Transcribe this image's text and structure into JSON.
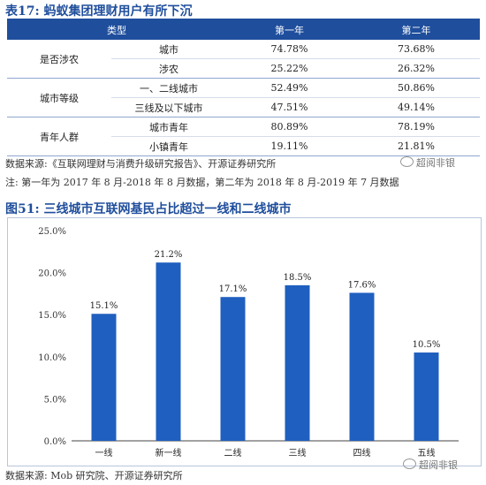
{
  "table17": {
    "title": "表17: 蚂蚁集团理财用户有所下沉",
    "headers": [
      "类型",
      "第一年",
      "第二年"
    ],
    "groups": [
      {
        "label": "是否涉农",
        "rows": [
          {
            "sub": "城市",
            "y1": "74.78%",
            "y2": "73.68%"
          },
          {
            "sub": "涉农",
            "y1": "25.22%",
            "y2": "26.32%"
          }
        ]
      },
      {
        "label": "城市等级",
        "rows": [
          {
            "sub": "一、二线城市",
            "y1": "52.49%",
            "y2": "50.86%"
          },
          {
            "sub": "三线及以下城市",
            "y1": "47.51%",
            "y2": "49.14%"
          }
        ]
      },
      {
        "label": "青年人群",
        "rows": [
          {
            "sub": "城市青年",
            "y1": "80.89%",
            "y2": "78.19%"
          },
          {
            "sub": "小镇青年",
            "y1": "19.11%",
            "y2": "21.81%"
          }
        ]
      }
    ],
    "source": "数据来源:《互联网理财与消费升级研究报告》、开源证券研究所",
    "note": "注: 第一年为 2017 年 8 月-2018 年 8 月数据，第二年为 2018 年 8 月-2019 年 7 月数据"
  },
  "watermark": "超阅非银",
  "figure51": {
    "title": "图51: 三线城市互联网基民占比超过一线和二线城市",
    "source": "数据来源: Mob 研究院、开源证券研究所"
  },
  "chart_data": {
    "type": "bar",
    "categories": [
      "一线",
      "新一线",
      "二线",
      "三线",
      "四线",
      "五线"
    ],
    "values": [
      15.1,
      21.2,
      17.1,
      18.5,
      17.6,
      10.5
    ],
    "value_labels": [
      "15.1%",
      "21.2%",
      "17.1%",
      "18.5%",
      "17.6%",
      "10.5%"
    ],
    "ylim": [
      0,
      25
    ],
    "yticks": [
      "0.0%",
      "5.0%",
      "10.0%",
      "15.0%",
      "20.0%",
      "25.0%"
    ],
    "bar_color": "#1f5fbf",
    "grid": false,
    "legend": "none"
  },
  "colors": {
    "accent": "#1f4e9c"
  }
}
